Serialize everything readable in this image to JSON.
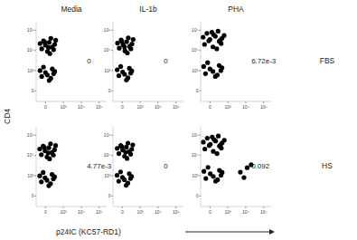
{
  "figure": {
    "columns": [
      "Media",
      "IL-1b",
      "PHA"
    ],
    "rows": [
      "FBS",
      "HS"
    ],
    "y_label": "CD4",
    "x_label": "p24IC (KC57-RD1)"
  },
  "chart_data": [
    {
      "type": "scatter",
      "color": "#000000",
      "marker": "dot",
      "log": true,
      "annotation": "0",
      "xlim": [
        -300,
        262144
      ],
      "ylim": [
        -300,
        262144
      ],
      "xticks": [
        0,
        {
          "value": 1000,
          "label": "10³"
        },
        {
          "value": 10000,
          "label": "10⁴"
        },
        {
          "value": 100000,
          "label": "10⁵"
        }
      ],
      "yticks": [
        0,
        {
          "value": 1000,
          "label": "10³"
        },
        {
          "value": 10000,
          "label": "10⁴"
        },
        {
          "value": 100000,
          "label": "10⁵"
        }
      ],
      "x": [
        -100,
        0,
        100,
        200,
        -50,
        50,
        300,
        150,
        -150,
        250,
        80,
        -20,
        350,
        120,
        -100,
        0,
        100,
        200,
        -50,
        50,
        300,
        150,
        -150,
        250
      ],
      "values": [
        12000,
        18000,
        25000,
        15000,
        30000,
        9000,
        20000,
        40000,
        22000,
        11000,
        14000,
        26000,
        32000,
        7000,
        500,
        800,
        300,
        1200,
        1500,
        600,
        900,
        400,
        1000,
        700
      ]
    },
    {
      "type": "scatter",
      "color": "#000000",
      "marker": "dot",
      "log": true,
      "annotation": "0",
      "xlim": [
        -300,
        262144
      ],
      "ylim": [
        -300,
        262144
      ],
      "xticks": [
        0,
        {
          "value": 1000,
          "label": "10³"
        },
        {
          "value": 10000,
          "label": "10⁴"
        },
        {
          "value": 100000,
          "label": "10⁵"
        }
      ],
      "yticks": [
        0,
        {
          "value": 1000,
          "label": "10³"
        },
        {
          "value": 10000,
          "label": "10⁴"
        },
        {
          "value": 100000,
          "label": "10⁵"
        }
      ],
      "x": [
        -80,
        20,
        120,
        220,
        -30,
        70,
        320,
        170,
        -130,
        270,
        60,
        -10,
        380,
        140,
        -90,
        10,
        110,
        210,
        -40,
        60,
        310,
        160,
        -140,
        260
      ],
      "values": [
        13000,
        19000,
        27000,
        16000,
        33000,
        9500,
        21000,
        42000,
        23000,
        12000,
        15000,
        28000,
        35000,
        7500,
        550,
        850,
        320,
        1300,
        1600,
        650,
        950,
        420,
        1100,
        750
      ]
    },
    {
      "type": "scatter",
      "color": "#000000",
      "marker": "dot",
      "log": true,
      "annotation": "6.72e-3",
      "xlim": [
        -300,
        262144
      ],
      "ylim": [
        -300,
        262144
      ],
      "xticks": [
        0,
        {
          "value": 1000,
          "label": "10³"
        },
        {
          "value": 10000,
          "label": "10⁴"
        },
        {
          "value": 100000,
          "label": "10⁵"
        }
      ],
      "yticks": [
        0,
        {
          "value": 1000,
          "label": "10³"
        },
        {
          "value": 10000,
          "label": "10⁴"
        },
        {
          "value": 100000,
          "label": "10⁵"
        }
      ],
      "x": [
        -150,
        0,
        150,
        300,
        -80,
        80,
        450,
        250,
        -200,
        400,
        100,
        -30,
        600,
        200,
        50,
        350,
        -120,
        0,
        150,
        300,
        -60,
        80,
        450,
        220,
        -180,
        380
      ],
      "values": [
        20000,
        35000,
        50000,
        28000,
        70000,
        15000,
        40000,
        90000,
        45000,
        22000,
        60000,
        30000,
        55000,
        12000,
        80000,
        32000,
        700,
        1200,
        500,
        1800,
        2500,
        900,
        1400,
        600,
        1600,
        1000
      ]
    },
    {
      "type": "scatter",
      "color": "#000000",
      "marker": "dot",
      "log": true,
      "annotation": "4.77e-3",
      "xlim": [
        -300,
        262144
      ],
      "ylim": [
        -300,
        262144
      ],
      "xticks": [
        0,
        {
          "value": 1000,
          "label": "10³"
        },
        {
          "value": 10000,
          "label": "10⁴"
        },
        {
          "value": 100000,
          "label": "10⁵"
        }
      ],
      "yticks": [
        0,
        {
          "value": 1000,
          "label": "10³"
        },
        {
          "value": 10000,
          "label": "10⁴"
        },
        {
          "value": 100000,
          "label": "10⁵"
        }
      ],
      "x": [
        -110,
        -10,
        90,
        190,
        -60,
        40,
        290,
        140,
        -160,
        240,
        70,
        -30,
        340,
        110,
        -110,
        -10,
        90,
        190,
        -60,
        40,
        290,
        140,
        -160,
        240
      ],
      "values": [
        11000,
        17000,
        24000,
        14000,
        29000,
        8500,
        19000,
        38000,
        21000,
        10500,
        13500,
        25000,
        31000,
        6800,
        480,
        780,
        290,
        1150,
        1450,
        580,
        880,
        380,
        980,
        680
      ]
    },
    {
      "type": "scatter",
      "color": "#000000",
      "marker": "dot",
      "log": true,
      "annotation": "0",
      "xlim": [
        -300,
        262144
      ],
      "ylim": [
        -300,
        262144
      ],
      "xticks": [
        0,
        {
          "value": 1000,
          "label": "10³"
        },
        {
          "value": 10000,
          "label": "10⁴"
        },
        {
          "value": 100000,
          "label": "10⁵"
        }
      ],
      "yticks": [
        0,
        {
          "value": 1000,
          "label": "10³"
        },
        {
          "value": 10000,
          "label": "10⁴"
        },
        {
          "value": 100000,
          "label": "10⁵"
        }
      ],
      "x": [
        -90,
        10,
        110,
        210,
        -40,
        60,
        310,
        160,
        -140,
        260,
        90,
        -10,
        360,
        130,
        -95,
        5,
        105,
        205,
        -45,
        55,
        305,
        155,
        -145,
        255
      ],
      "values": [
        12500,
        18500,
        26000,
        15500,
        31000,
        9200,
        20500,
        41000,
        22500,
        11500,
        14500,
        27000,
        33000,
        7200,
        520,
        820,
        310,
        1250,
        1550,
        620,
        920,
        410,
        1050,
        720
      ]
    },
    {
      "type": "scatter",
      "color": "#000000",
      "marker": "dot",
      "log": true,
      "annotation": "0.092",
      "xlim": [
        -300,
        262144
      ],
      "ylim": [
        -300,
        262144
      ],
      "xticks": [
        0,
        {
          "value": 1000,
          "label": "10³"
        },
        {
          "value": 10000,
          "label": "10⁴"
        },
        {
          "value": 100000,
          "label": "10⁵"
        }
      ],
      "yticks": [
        0,
        {
          "value": 1000,
          "label": "10³"
        },
        {
          "value": 10000,
          "label": "10⁴"
        },
        {
          "value": 100000,
          "label": "10⁵"
        }
      ],
      "x": [
        -140,
        10,
        160,
        310,
        -70,
        90,
        460,
        260,
        -190,
        410,
        110,
        -20,
        620,
        210,
        60,
        360,
        -110,
        10,
        160,
        310,
        -50,
        90,
        460,
        230,
        -170,
        390,
        5000,
        12000,
        8000,
        20000
      ],
      "values": [
        21000,
        36000,
        52000,
        29000,
        72000,
        16000,
        42000,
        92000,
        46000,
        23000,
        62000,
        31000,
        57000,
        12500,
        82000,
        33000,
        720,
        1250,
        520,
        1850,
        2600,
        920,
        1450,
        620,
        1650,
        1050,
        1500,
        2500,
        800,
        3500
      ]
    }
  ]
}
